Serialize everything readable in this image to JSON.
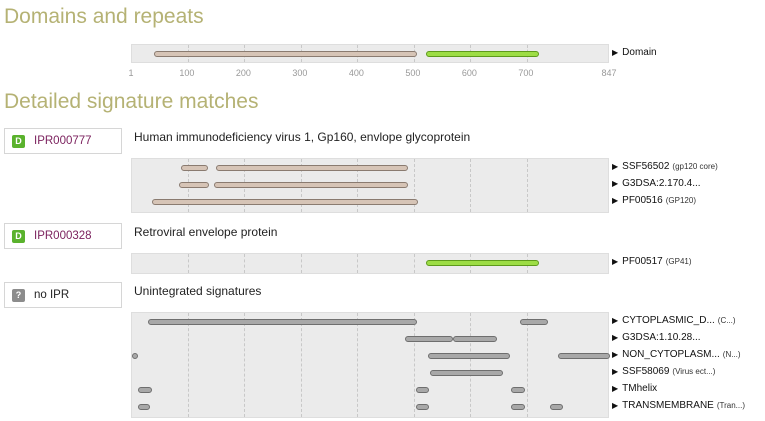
{
  "headings": {
    "domains": "Domains and repeats",
    "detailed": "Detailed signature matches"
  },
  "scale": {
    "max": 847,
    "ticks": [
      "1",
      "100",
      "200",
      "300",
      "400",
      "500",
      "600",
      "700",
      "847"
    ]
  },
  "domains_row": {
    "label": "Domain",
    "bars": [
      {
        "start": 40,
        "end": 505,
        "color": "tan"
      },
      {
        "start": 522,
        "end": 722,
        "color": "green"
      }
    ]
  },
  "entries": [
    {
      "badge": "D",
      "badge_color": "#5ab22d",
      "ipr": "IPR000777",
      "ipr_color": "#7a1f5c",
      "description": "Human immunodeficiency virus 1, Gp160, envlope glycoprotein",
      "rows": [
        {
          "name": "SSF56502",
          "sub": "(gp120 core)",
          "bars": [
            {
              "start": 87,
              "end": 136,
              "color": "tan"
            },
            {
              "start": 150,
              "end": 490,
              "color": "tan"
            }
          ]
        },
        {
          "name": "G3DSA:2.170.4...",
          "sub": "",
          "bars": [
            {
              "start": 85,
              "end": 138,
              "color": "tan"
            },
            {
              "start": 146,
              "end": 490,
              "color": "tan"
            }
          ]
        },
        {
          "name": "PF00516",
          "sub": "(GP120)",
          "bars": [
            {
              "start": 36,
              "end": 508,
              "color": "tan"
            }
          ]
        }
      ]
    },
    {
      "badge": "D",
      "badge_color": "#5ab22d",
      "ipr": "IPR000328",
      "ipr_color": "#7a1f5c",
      "description": "Retroviral envelope protein",
      "rows": [
        {
          "name": "PF00517",
          "sub": "(GP41)",
          "bars": [
            {
              "start": 522,
              "end": 722,
              "color": "green"
            }
          ]
        }
      ]
    },
    {
      "badge": "?",
      "badge_color": "#8c8c8c",
      "ipr": "no IPR",
      "ipr_color": "#222222",
      "description": "Unintegrated signatures",
      "rows": [
        {
          "name": "CYTOPLASMIC_D...",
          "sub": "(C...)",
          "bars": [
            {
              "start": 30,
              "end": 505,
              "color": "gray"
            },
            {
              "start": 688,
              "end": 737,
              "color": "gray"
            }
          ]
        },
        {
          "name": "G3DSA:1.10.28...",
          "sub": "",
          "bars": [
            {
              "start": 485,
              "end": 570,
              "color": "gray"
            },
            {
              "start": 570,
              "end": 647,
              "color": "gray"
            }
          ]
        },
        {
          "name": "NON_CYTOPLASM...",
          "sub": "(N...)",
          "bars": [
            {
              "start": 1,
              "end": 12,
              "color": "gray"
            },
            {
              "start": 525,
              "end": 670,
              "color": "gray"
            },
            {
              "start": 755,
              "end": 847,
              "color": "gray"
            }
          ]
        },
        {
          "name": "SSF58069",
          "sub": "(Virus ect...)",
          "bars": [
            {
              "start": 528,
              "end": 657,
              "color": "gray"
            }
          ]
        },
        {
          "name": "TMhelix",
          "sub": "",
          "bars": [
            {
              "start": 12,
              "end": 37,
              "color": "gray"
            },
            {
              "start": 504,
              "end": 527,
              "color": "gray"
            },
            {
              "start": 671,
              "end": 696,
              "color": "gray"
            }
          ]
        },
        {
          "name": "TRANSMEMBRANE",
          "sub": "(Tran...)",
          "bars": [
            {
              "start": 12,
              "end": 33,
              "color": "gray"
            },
            {
              "start": 504,
              "end": 527,
              "color": "gray"
            },
            {
              "start": 671,
              "end": 696,
              "color": "gray"
            },
            {
              "start": 740,
              "end": 763,
              "color": "gray"
            }
          ]
        }
      ]
    }
  ]
}
